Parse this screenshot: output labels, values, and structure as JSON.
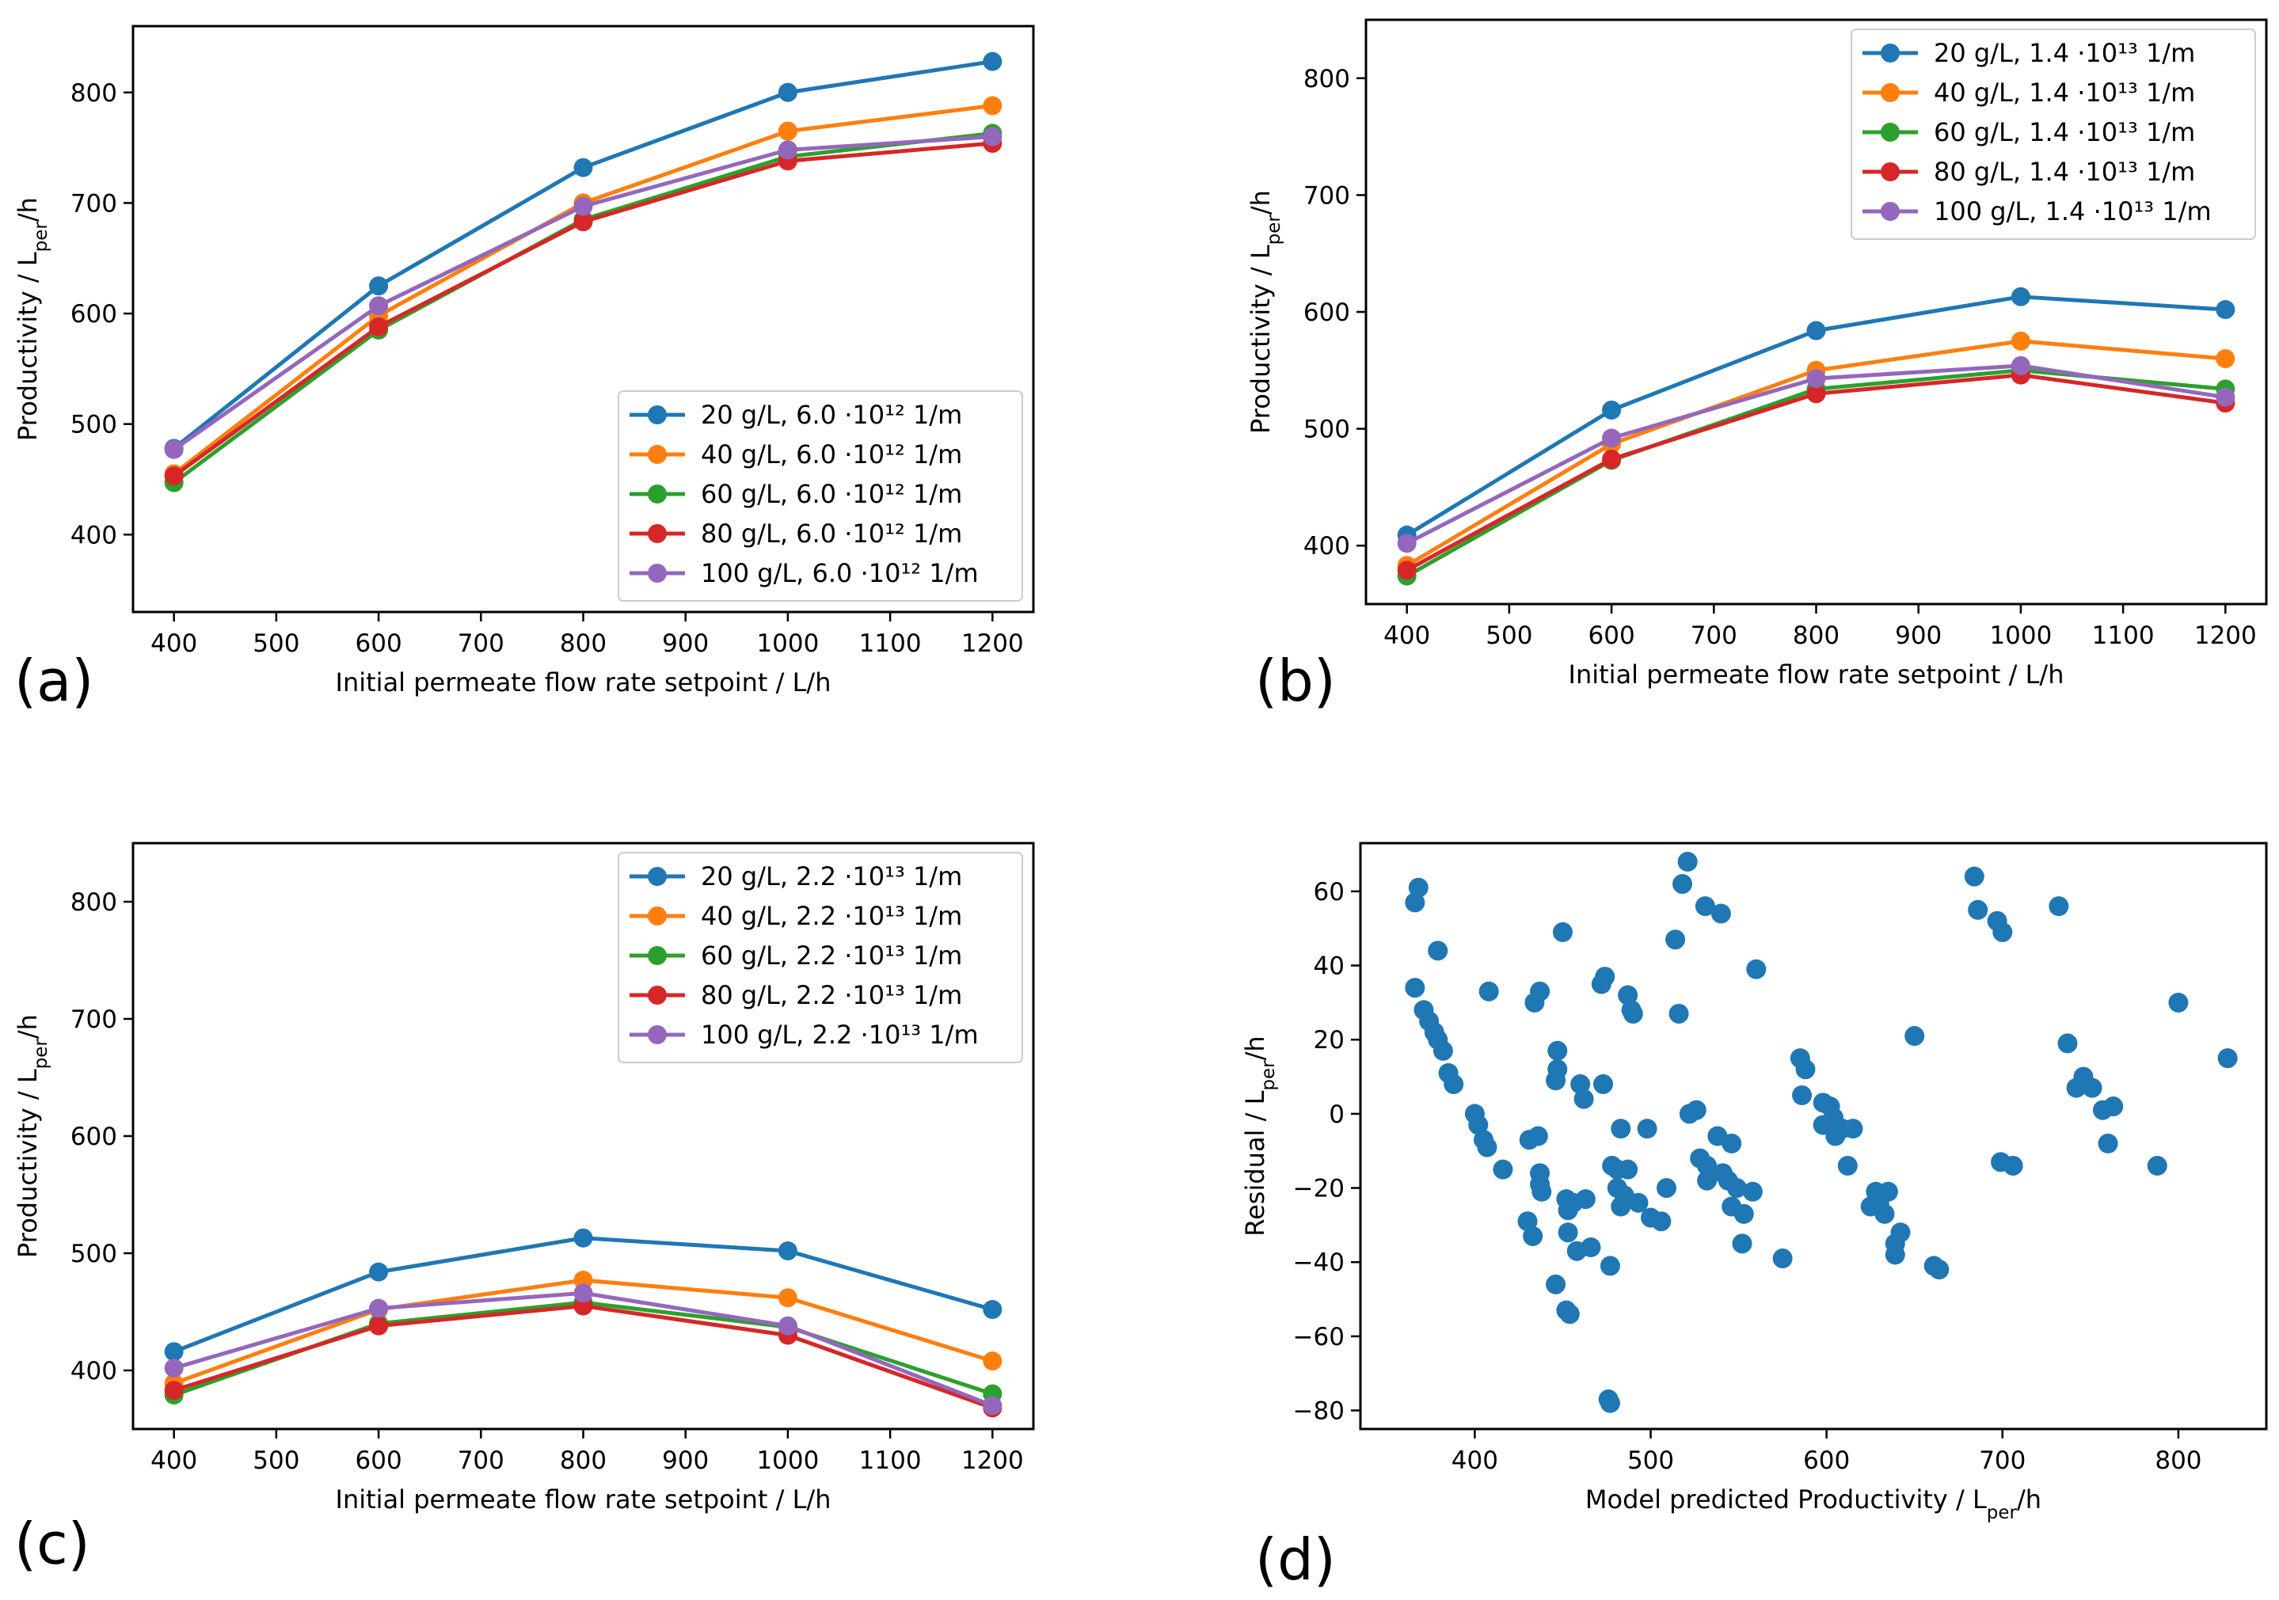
{
  "colors": {
    "c20": "#1f77b4",
    "c40": "#ff7f0e",
    "c60": "#2ca02c",
    "c80": "#d62728",
    "c100": "#9467bd"
  },
  "chart_data": [
    {
      "id": "a",
      "panel_label": "(a)",
      "type": "line",
      "xlabel": "Initial permeate flow rate setpoint / L/h",
      "ylabel_main": "Productivity / L",
      "ylabel_sub": "per",
      "ylabel_tail": "/h",
      "xlim": [
        360,
        1240
      ],
      "ylim": [
        330,
        860
      ],
      "xticks": [
        400,
        500,
        600,
        700,
        800,
        900,
        1000,
        1100,
        1200
      ],
      "yticks": [
        400,
        500,
        600,
        700,
        800
      ],
      "legend_position": "lower-right",
      "x": [
        400,
        600,
        800,
        1000,
        1200
      ],
      "series": [
        {
          "name": "20 g/L, 6.0 ·10¹² 1/m",
          "color": "#1f77b4",
          "values": [
            478,
            625,
            732,
            800,
            828
          ]
        },
        {
          "name": "40 g/L, 6.0 ·10¹² 1/m",
          "color": "#ff7f0e",
          "values": [
            455,
            598,
            700,
            765,
            788
          ]
        },
        {
          "name": "60 g/L, 6.0 ·10¹² 1/m",
          "color": "#2ca02c",
          "values": [
            447,
            585,
            685,
            742,
            763
          ]
        },
        {
          "name": "80 g/L, 6.0 ·10¹² 1/m",
          "color": "#d62728",
          "values": [
            453,
            588,
            683,
            738,
            754
          ]
        },
        {
          "name": "100 g/L, 6.0 ·10¹² 1/m",
          "color": "#9467bd",
          "values": [
            477,
            607,
            697,
            748,
            760
          ]
        }
      ]
    },
    {
      "id": "b",
      "panel_label": "(b)",
      "type": "line",
      "xlabel": "Initial permeate flow rate setpoint / L/h",
      "ylabel_main": "Productivity / L",
      "ylabel_sub": "per",
      "ylabel_tail": "/h",
      "xlim": [
        360,
        1240
      ],
      "ylim": [
        350,
        850
      ],
      "xticks": [
        400,
        500,
        600,
        700,
        800,
        900,
        1000,
        1100,
        1200
      ],
      "yticks": [
        400,
        500,
        600,
        700,
        800
      ],
      "legend_position": "upper-right",
      "x": [
        400,
        600,
        800,
        1000,
        1200
      ],
      "series": [
        {
          "name": "20 g/L, 1.4 ·10¹³ 1/m",
          "color": "#1f77b4",
          "values": [
            409,
            516,
            584,
            613,
            602
          ]
        },
        {
          "name": "40 g/L, 1.4 ·10¹³ 1/m",
          "color": "#ff7f0e",
          "values": [
            383,
            487,
            550,
            575,
            560
          ]
        },
        {
          "name": "60 g/L, 1.4 ·10¹³ 1/m",
          "color": "#2ca02c",
          "values": [
            374,
            473,
            534,
            550,
            534
          ]
        },
        {
          "name": "80 g/L, 1.4 ·10¹³ 1/m",
          "color": "#d62728",
          "values": [
            379,
            474,
            530,
            546,
            522
          ]
        },
        {
          "name": "100 g/L, 1.4 ·10¹³ 1/m",
          "color": "#9467bd",
          "values": [
            402,
            492,
            543,
            554,
            527
          ]
        }
      ]
    },
    {
      "id": "c",
      "panel_label": "(c)",
      "type": "line",
      "xlabel": "Initial permeate flow rate setpoint / L/h",
      "ylabel_main": "Productivity / L",
      "ylabel_sub": "per",
      "ylabel_tail": "/h",
      "xlim": [
        360,
        1240
      ],
      "ylim": [
        350,
        850
      ],
      "xticks": [
        400,
        500,
        600,
        700,
        800,
        900,
        1000,
        1100,
        1200
      ],
      "yticks": [
        400,
        500,
        600,
        700,
        800
      ],
      "legend_position": "upper-right",
      "x": [
        400,
        600,
        800,
        1000,
        1200
      ],
      "series": [
        {
          "name": "20 g/L, 2.2 ·10¹³ 1/m",
          "color": "#1f77b4",
          "values": [
            416,
            484,
            513,
            502,
            452
          ]
        },
        {
          "name": "40 g/L, 2.2 ·10¹³ 1/m",
          "color": "#ff7f0e",
          "values": [
            389,
            452,
            477,
            462,
            408
          ]
        },
        {
          "name": "60 g/L, 2.2 ·10¹³ 1/m",
          "color": "#2ca02c",
          "values": [
            379,
            440,
            458,
            437,
            380
          ]
        },
        {
          "name": "80 g/L, 2.2 ·10¹³ 1/m",
          "color": "#d62728",
          "values": [
            383,
            438,
            455,
            430,
            368
          ]
        },
        {
          "name": "100 g/L, 2.2 ·10¹³ 1/m",
          "color": "#9467bd",
          "values": [
            402,
            453,
            466,
            438,
            370
          ]
        }
      ]
    },
    {
      "id": "d",
      "panel_label": "(d)",
      "type": "scatter",
      "xlabel_main": "Model predicted Productivity / L",
      "xlabel_sub": "per",
      "xlabel_tail": "/h",
      "ylabel_main": "Residual / L",
      "ylabel_sub": "per",
      "ylabel_tail": "/h",
      "xlim": [
        335,
        850
      ],
      "ylim": [
        -85,
        73
      ],
      "xticks": [
        400,
        500,
        600,
        700,
        800
      ],
      "yticks": [
        -80,
        -60,
        -40,
        -20,
        0,
        20,
        40,
        60
      ],
      "color": "#1f77b4",
      "points": [
        [
          366,
          57
        ],
        [
          368,
          61
        ],
        [
          366,
          34
        ],
        [
          371,
          28
        ],
        [
          374,
          25
        ],
        [
          377,
          22
        ],
        [
          379,
          20
        ],
        [
          382,
          17
        ],
        [
          385,
          11
        ],
        [
          388,
          8
        ],
        [
          379,
          44
        ],
        [
          400,
          0
        ],
        [
          402,
          -3
        ],
        [
          405,
          -7
        ],
        [
          407,
          -9
        ],
        [
          408,
          33
        ],
        [
          416,
          -15
        ],
        [
          430,
          -29
        ],
        [
          431,
          -7
        ],
        [
          433,
          -33
        ],
        [
          434,
          30
        ],
        [
          436,
          -6
        ],
        [
          437,
          33
        ],
        [
          437,
          -16
        ],
        [
          437,
          -19
        ],
        [
          438,
          -21
        ],
        [
          446,
          -46
        ],
        [
          446,
          9
        ],
        [
          447,
          12
        ],
        [
          447,
          17
        ],
        [
          450,
          49
        ],
        [
          452,
          -53
        ],
        [
          452,
          -23
        ],
        [
          453,
          -32
        ],
        [
          453,
          -26
        ],
        [
          454,
          -54
        ],
        [
          456,
          -24
        ],
        [
          458,
          -37
        ],
        [
          460,
          8
        ],
        [
          462,
          4
        ],
        [
          463,
          -23
        ],
        [
          466,
          -36
        ],
        [
          472,
          35
        ],
        [
          473,
          8
        ],
        [
          474,
          37
        ],
        [
          476,
          -77
        ],
        [
          477,
          -78
        ],
        [
          477,
          -41
        ],
        [
          478,
          -14
        ],
        [
          481,
          -20
        ],
        [
          481,
          -15
        ],
        [
          483,
          -25
        ],
        [
          483,
          -4
        ],
        [
          485,
          -22
        ],
        [
          487,
          32
        ],
        [
          487,
          -15
        ],
        [
          489,
          28
        ],
        [
          490,
          27
        ],
        [
          493,
          -24
        ],
        [
          498,
          -4
        ],
        [
          500,
          -28
        ],
        [
          506,
          -29
        ],
        [
          509,
          -20
        ],
        [
          514,
          47
        ],
        [
          516,
          27
        ],
        [
          518,
          62
        ],
        [
          521,
          68
        ],
        [
          522,
          0
        ],
        [
          526,
          1
        ],
        [
          528,
          -12
        ],
        [
          531,
          56
        ],
        [
          532,
          -14
        ],
        [
          532,
          -18
        ],
        [
          538,
          -6
        ],
        [
          540,
          54
        ],
        [
          541,
          -16
        ],
        [
          544,
          -18
        ],
        [
          546,
          -25
        ],
        [
          546,
          -8
        ],
        [
          549,
          -20
        ],
        [
          552,
          -35
        ],
        [
          553,
          -27
        ],
        [
          560,
          39
        ],
        [
          558,
          -21
        ],
        [
          575,
          -39
        ],
        [
          585,
          15
        ],
        [
          588,
          12
        ],
        [
          586,
          5
        ],
        [
          598,
          3
        ],
        [
          598,
          -3
        ],
        [
          602,
          2
        ],
        [
          604,
          -1
        ],
        [
          605,
          -6
        ],
        [
          609,
          -4
        ],
        [
          612,
          -14
        ],
        [
          615,
          -4
        ],
        [
          625,
          -25
        ],
        [
          628,
          -21
        ],
        [
          630,
          -24
        ],
        [
          633,
          -27
        ],
        [
          635,
          -21
        ],
        [
          639,
          -38
        ],
        [
          639,
          -35
        ],
        [
          642,
          -32
        ],
        [
          650,
          21
        ],
        [
          661,
          -41
        ],
        [
          664,
          -42
        ],
        [
          684,
          64
        ],
        [
          686,
          55
        ],
        [
          697,
          52
        ],
        [
          699,
          -13
        ],
        [
          700,
          49
        ],
        [
          706,
          -14
        ],
        [
          732,
          56
        ],
        [
          737,
          19
        ],
        [
          742,
          7
        ],
        [
          746,
          10
        ],
        [
          751,
          7
        ],
        [
          757,
          1
        ],
        [
          760,
          -8
        ],
        [
          763,
          2
        ],
        [
          788,
          -14
        ],
        [
          800,
          30
        ],
        [
          828,
          15
        ]
      ]
    }
  ]
}
